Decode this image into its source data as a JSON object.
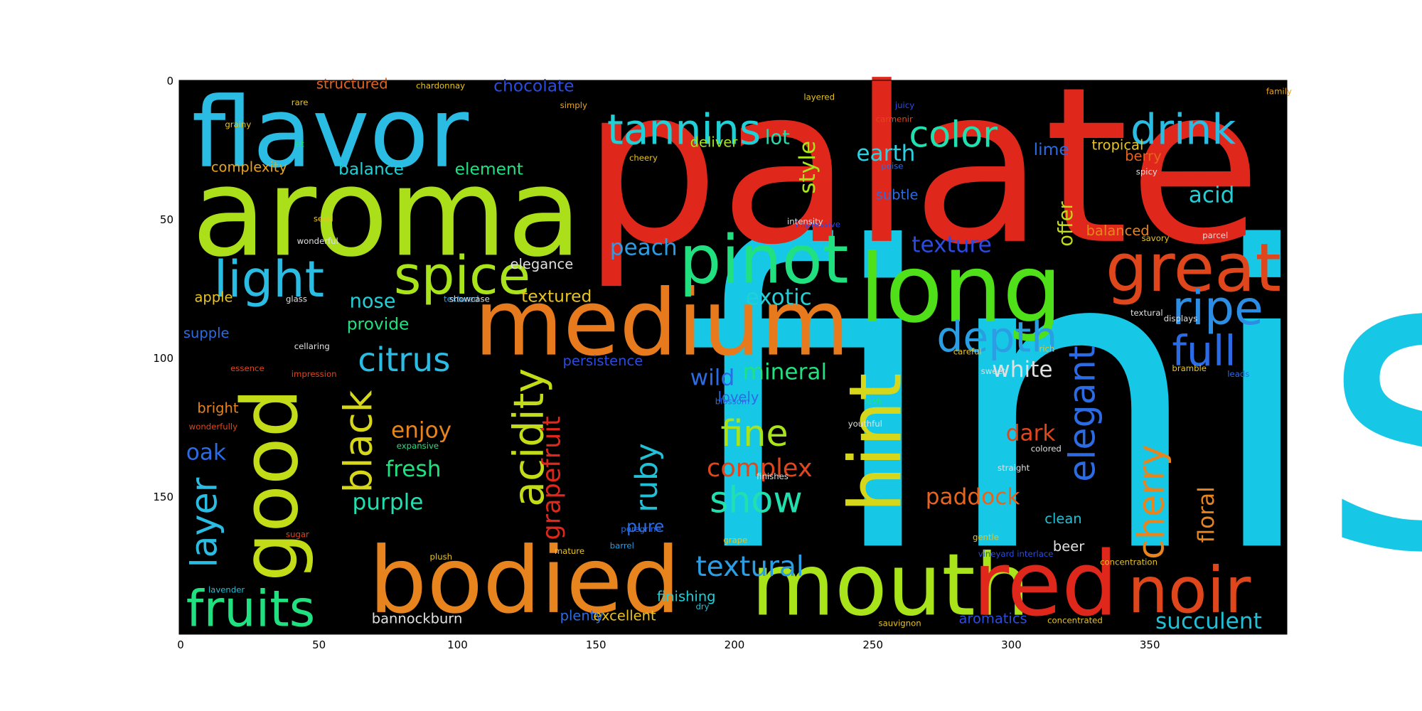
{
  "chart_data": {
    "type": "wordcloud_image",
    "title": "",
    "xlabel": "",
    "ylabel": "",
    "xlim": [
      0,
      400
    ],
    "ylim": [
      200,
      0
    ],
    "x_ticks": [
      "0",
      "50",
      "100",
      "150",
      "200",
      "250",
      "300",
      "350"
    ],
    "y_ticks": [
      "0",
      "50",
      "100",
      "150"
    ],
    "background_color": "#000000",
    "words": [
      {
        "text": "finish",
        "x": 180,
        "y": 168,
        "size": 150,
        "color": "#17c8e6"
      },
      {
        "text": "palate",
        "x": 145,
        "y": 58,
        "size": 78,
        "color": "#e0271b"
      },
      {
        "text": "aroma",
        "x": 4,
        "y": 63,
        "size": 44,
        "color": "#aadf1a"
      },
      {
        "text": "flavor",
        "x": 4,
        "y": 31,
        "size": 35,
        "color": "#2bbce3"
      },
      {
        "text": "long",
        "x": 245,
        "y": 87,
        "size": 34,
        "color": "#4fe01a"
      },
      {
        "text": "medium",
        "x": 106,
        "y": 99,
        "size": 33,
        "color": "#e87a1e"
      },
      {
        "text": "bodied",
        "x": 68,
        "y": 192,
        "size": 33,
        "color": "#e8841e"
      },
      {
        "text": "mouth",
        "x": 206,
        "y": 193,
        "size": 31,
        "color": "#a9e41a"
      },
      {
        "text": "red",
        "x": 286,
        "y": 193,
        "size": 32,
        "color": "#e0271b"
      },
      {
        "text": "good",
        "x": 42,
        "y": 181,
        "size": 28,
        "color": "#c3dc18",
        "rotate": -90
      },
      {
        "text": "hint",
        "x": 260,
        "y": 156,
        "size": 26,
        "color": "#d6d61a",
        "rotate": -90
      },
      {
        "text": "pinot",
        "x": 180,
        "y": 73,
        "size": 24,
        "color": "#20e080"
      },
      {
        "text": "great",
        "x": 334,
        "y": 76,
        "size": 24,
        "color": "#e0461b"
      },
      {
        "text": "noir",
        "x": 342,
        "y": 192,
        "size": 23,
        "color": "#e0461b"
      },
      {
        "text": "spice",
        "x": 77,
        "y": 77,
        "size": 19,
        "color": "#a9e41a"
      },
      {
        "text": "light",
        "x": 12,
        "y": 78,
        "size": 18,
        "color": "#2bbce3"
      },
      {
        "text": "fruits",
        "x": 2,
        "y": 197,
        "size": 18,
        "color": "#20e080"
      },
      {
        "text": "ripe",
        "x": 358,
        "y": 88,
        "size": 17,
        "color": "#2b8de3"
      },
      {
        "text": "drink",
        "x": 343,
        "y": 23,
        "size": 15,
        "color": "#2bbce3"
      },
      {
        "text": "tannins",
        "x": 154,
        "y": 23,
        "size": 15,
        "color": "#20d0d6"
      },
      {
        "text": "depth",
        "x": 273,
        "y": 98,
        "size": 15,
        "color": "#2b9ee3"
      },
      {
        "text": "full",
        "x": 358,
        "y": 103,
        "size": 15,
        "color": "#2b6be3"
      },
      {
        "text": "color",
        "x": 263,
        "y": 24,
        "size": 13,
        "color": "#20e0b0"
      },
      {
        "text": "citrus",
        "x": 64,
        "y": 105,
        "size": 12,
        "color": "#2bbce3"
      },
      {
        "text": "acidity",
        "x": 131,
        "y": 154,
        "size": 15,
        "color": "#c3dc18",
        "rotate": -90
      },
      {
        "text": "black",
        "x": 69,
        "y": 149,
        "size": 14,
        "color": "#d6d61a",
        "rotate": -90
      },
      {
        "text": "layer",
        "x": 13,
        "y": 176,
        "size": 13,
        "color": "#2bbce3",
        "rotate": -90
      },
      {
        "text": "cherry",
        "x": 355,
        "y": 173,
        "size": 13,
        "color": "#e8841e",
        "rotate": -90
      },
      {
        "text": "elegant",
        "x": 330,
        "y": 145,
        "size": 13,
        "color": "#2b6be3",
        "rotate": -90
      },
      {
        "text": "show",
        "x": 191,
        "y": 156,
        "size": 13,
        "color": "#20e0b0"
      },
      {
        "text": "fine",
        "x": 195,
        "y": 132,
        "size": 13,
        "color": "#a9e41a"
      },
      {
        "text": "ruby",
        "x": 172,
        "y": 156,
        "size": 11,
        "color": "#20c0d6",
        "rotate": -90
      },
      {
        "text": "grapefruit",
        "x": 137,
        "y": 166,
        "size": 9,
        "color": "#e0271b",
        "rotate": -90
      },
      {
        "text": "textural",
        "x": 186,
        "y": 179,
        "size": 10,
        "color": "#2b9ee3"
      },
      {
        "text": "succulent",
        "x": 352,
        "y": 198,
        "size": 8,
        "color": "#20c0d6"
      },
      {
        "text": "floral",
        "x": 373,
        "y": 167,
        "size": 8,
        "color": "#e8841e",
        "rotate": -90
      },
      {
        "text": "complex",
        "x": 190,
        "y": 143,
        "size": 9,
        "color": "#e0461b"
      },
      {
        "text": "paddock",
        "x": 269,
        "y": 153,
        "size": 8,
        "color": "#e8641e"
      },
      {
        "text": "dark",
        "x": 298,
        "y": 130,
        "size": 8,
        "color": "#e0461b"
      },
      {
        "text": "white",
        "x": 293,
        "y": 107,
        "size": 8,
        "color": "#e0e0e0"
      },
      {
        "text": "mineral",
        "x": 203,
        "y": 108,
        "size": 8,
        "color": "#20e080"
      },
      {
        "text": "wild",
        "x": 184,
        "y": 110,
        "size": 8,
        "color": "#2b6be3"
      },
      {
        "text": "exotic",
        "x": 204,
        "y": 81,
        "size": 8,
        "color": "#20d0d6"
      },
      {
        "text": "texture",
        "x": 264,
        "y": 62,
        "size": 8,
        "color": "#2b4be3"
      },
      {
        "text": "peach",
        "x": 155,
        "y": 63,
        "size": 8,
        "color": "#2b9ee3"
      },
      {
        "text": "earth",
        "x": 244,
        "y": 29,
        "size": 8,
        "color": "#2bd0e3"
      },
      {
        "text": "acid",
        "x": 364,
        "y": 44,
        "size": 8,
        "color": "#20d0d6"
      },
      {
        "text": "style",
        "x": 229,
        "y": 41,
        "size": 8,
        "color": "#a9e41a",
        "rotate": -90
      },
      {
        "text": "offer",
        "x": 322,
        "y": 60,
        "size": 7,
        "color": "#c3dc18",
        "rotate": -90
      },
      {
        "text": "enjoy",
        "x": 76,
        "y": 129,
        "size": 8,
        "color": "#e8841e"
      },
      {
        "text": "fresh",
        "x": 74,
        "y": 143,
        "size": 8,
        "color": "#20e080"
      },
      {
        "text": "purple",
        "x": 62,
        "y": 155,
        "size": 8,
        "color": "#20e0b0"
      },
      {
        "text": "oak",
        "x": 2,
        "y": 137,
        "size": 8,
        "color": "#2b6be3"
      },
      {
        "text": "nose",
        "x": 61,
        "y": 82,
        "size": 7,
        "color": "#20d0d6"
      },
      {
        "text": "textured",
        "x": 123,
        "y": 80,
        "size": 6,
        "color": "#e8c41e"
      },
      {
        "text": "provide",
        "x": 60,
        "y": 90,
        "size": 6,
        "color": "#20e080"
      },
      {
        "text": "apple",
        "x": 5,
        "y": 80,
        "size": 5,
        "color": "#e8c41e"
      },
      {
        "text": "balance",
        "x": 57,
        "y": 34,
        "size": 6,
        "color": "#20d0d6"
      },
      {
        "text": "element",
        "x": 99,
        "y": 34,
        "size": 6,
        "color": "#20e080"
      },
      {
        "text": "complexity",
        "x": 11,
        "y": 33,
        "size": 5,
        "color": "#e8a41e"
      },
      {
        "text": "chocolate",
        "x": 113,
        "y": 4,
        "size": 6,
        "color": "#2b4be3"
      },
      {
        "text": "structured",
        "x": 49,
        "y": 3,
        "size": 5,
        "color": "#e8641e"
      },
      {
        "text": "lot",
        "x": 211,
        "y": 23,
        "size": 7,
        "color": "#20e0b0"
      },
      {
        "text": "deliver",
        "x": 184,
        "y": 24,
        "size": 5,
        "color": "#a9e41a"
      },
      {
        "text": "lime",
        "x": 308,
        "y": 27,
        "size": 6,
        "color": "#2b6be3"
      },
      {
        "text": "tropical",
        "x": 329,
        "y": 25,
        "size": 5,
        "color": "#e8c41e"
      },
      {
        "text": "berry",
        "x": 341,
        "y": 29,
        "size": 5,
        "color": "#e8641e"
      },
      {
        "text": "subtle",
        "x": 251,
        "y": 43,
        "size": 5,
        "color": "#2b6be3"
      },
      {
        "text": "balanced",
        "x": 327,
        "y": 56,
        "size": 5,
        "color": "#e8841e"
      },
      {
        "text": "elegance",
        "x": 119,
        "y": 68,
        "size": 5,
        "color": "#e0e0e0"
      },
      {
        "text": "bright",
        "x": 6,
        "y": 120,
        "size": 5,
        "color": "#e8841e"
      },
      {
        "text": "supple",
        "x": 1,
        "y": 93,
        "size": 5,
        "color": "#2b6be3"
      },
      {
        "text": "lovely",
        "x": 194,
        "y": 116,
        "size": 5,
        "color": "#2b6be3"
      },
      {
        "text": "persistence",
        "x": 138,
        "y": 103,
        "size": 5,
        "color": "#2b4be3"
      },
      {
        "text": "clean",
        "x": 312,
        "y": 160,
        "size": 5,
        "color": "#20c0d6"
      },
      {
        "text": "beer",
        "x": 315,
        "y": 170,
        "size": 5,
        "color": "#e0e0e0"
      },
      {
        "text": "pure",
        "x": 161,
        "y": 163,
        "size": 6,
        "color": "#2b6be3"
      },
      {
        "text": "finishing",
        "x": 172,
        "y": 188,
        "size": 5,
        "color": "#20d0d6"
      },
      {
        "text": "excellent",
        "x": 149,
        "y": 195,
        "size": 5,
        "color": "#e8c41e"
      },
      {
        "text": "plenty",
        "x": 137,
        "y": 195,
        "size": 5,
        "color": "#2b6be3"
      },
      {
        "text": "bannockburn",
        "x": 69,
        "y": 196,
        "size": 5,
        "color": "#e0e0e0"
      },
      {
        "text": "aromatics",
        "x": 281,
        "y": 196,
        "size": 5,
        "color": "#2b4be3"
      },
      {
        "text": "chardonnay",
        "x": 85,
        "y": 3,
        "size": 3,
        "color": "#e8c41e"
      },
      {
        "text": "simply",
        "x": 137,
        "y": 10,
        "size": 3,
        "color": "#e8a41e"
      },
      {
        "text": "rare",
        "x": 40,
        "y": 9,
        "size": 3,
        "color": "#e8c41e"
      },
      {
        "text": "grainy",
        "x": 16,
        "y": 17,
        "size": 3,
        "color": "#e8c41e"
      },
      {
        "text": "sit",
        "x": 41,
        "y": 24,
        "size": 3,
        "color": "#20e080"
      },
      {
        "text": "juicy",
        "x": 258,
        "y": 10,
        "size": 3,
        "color": "#2b4be3"
      },
      {
        "text": "layered",
        "x": 225,
        "y": 7,
        "size": 3,
        "color": "#e8c41e"
      },
      {
        "text": "carmenir",
        "x": 251,
        "y": 15,
        "size": 3,
        "color": "#e0461b"
      },
      {
        "text": "family",
        "x": 392,
        "y": 5,
        "size": 3,
        "color": "#e8a41e"
      },
      {
        "text": "seed",
        "x": 48,
        "y": 51,
        "size": 3,
        "color": "#e8c41e"
      },
      {
        "text": "wonderful",
        "x": 42,
        "y": 59,
        "size": 3,
        "color": "#e0e0e0"
      },
      {
        "text": "textured",
        "x": 95,
        "y": 80,
        "size": 3,
        "color": "#2b9ee3"
      },
      {
        "text": "cellaring",
        "x": 41,
        "y": 97,
        "size": 3,
        "color": "#e0e0e0"
      },
      {
        "text": "impression",
        "x": 40,
        "y": 107,
        "size": 3,
        "color": "#e0461b"
      },
      {
        "text": "essence",
        "x": 18,
        "y": 105,
        "size": 3,
        "color": "#e0461b"
      },
      {
        "text": "wonderfully",
        "x": 3,
        "y": 126,
        "size": 3,
        "color": "#e0461b"
      },
      {
        "text": "expansive",
        "x": 78,
        "y": 133,
        "size": 3,
        "color": "#20e080"
      },
      {
        "text": "plush",
        "x": 90,
        "y": 173,
        "size": 3,
        "color": "#e8c41e"
      },
      {
        "text": "lavender",
        "x": 10,
        "y": 185,
        "size": 3,
        "color": "#20c0d6"
      },
      {
        "text": "sugar",
        "x": 38,
        "y": 165,
        "size": 3,
        "color": "#e0461b"
      },
      {
        "text": "grape",
        "x": 196,
        "y": 167,
        "size": 3,
        "color": "#e8c41e"
      },
      {
        "text": "gentle",
        "x": 286,
        "y": 166,
        "size": 3,
        "color": "#e8c41e"
      },
      {
        "text": "vineyard interlace",
        "x": 288,
        "y": 172,
        "size": 3,
        "color": "#2b4be3"
      },
      {
        "text": "concentration",
        "x": 332,
        "y": 175,
        "size": 3,
        "color": "#e8c41e"
      },
      {
        "text": "sauvignon",
        "x": 252,
        "y": 197,
        "size": 3,
        "color": "#e8c41e"
      },
      {
        "text": "concentrated",
        "x": 313,
        "y": 196,
        "size": 3,
        "color": "#e8c41e"
      },
      {
        "text": "bramble",
        "x": 358,
        "y": 105,
        "size": 3,
        "color": "#e8c41e"
      },
      {
        "text": "leads",
        "x": 378,
        "y": 107,
        "size": 3,
        "color": "#2b6be3"
      },
      {
        "text": "displays",
        "x": 355,
        "y": 87,
        "size": 3,
        "color": "#e0e0e0"
      },
      {
        "text": "savory",
        "x": 347,
        "y": 58,
        "size": 3,
        "color": "#e8c41e"
      },
      {
        "text": "parcel",
        "x": 369,
        "y": 57,
        "size": 3,
        "color": "#e0e0e0"
      },
      {
        "text": "mature",
        "x": 135,
        "y": 171,
        "size": 3,
        "color": "#e8c41e"
      },
      {
        "text": "dry",
        "x": 186,
        "y": 191,
        "size": 3,
        "color": "#20c0d6"
      },
      {
        "text": "barrel",
        "x": 155,
        "y": 169,
        "size": 3,
        "color": "#2b9ee3"
      },
      {
        "text": "peregrine",
        "x": 159,
        "y": 163,
        "size": 3,
        "color": "#2b6be3"
      },
      {
        "text": "blossom",
        "x": 193,
        "y": 117,
        "size": 3,
        "color": "#2b6be3"
      },
      {
        "text": "finishes",
        "x": 208,
        "y": 144,
        "size": 3,
        "color": "#e0e0e0"
      },
      {
        "text": "youthful",
        "x": 241,
        "y": 125,
        "size": 3,
        "color": "#e0e0e0"
      },
      {
        "text": "colored",
        "x": 307,
        "y": 134,
        "size": 3,
        "color": "#e0e0e0"
      },
      {
        "text": "careful",
        "x": 279,
        "y": 99,
        "size": 3,
        "color": "#e8c41e"
      },
      {
        "text": "rich",
        "x": 310,
        "y": 98,
        "size": 3,
        "color": "#e8c41e"
      },
      {
        "text": "sweet",
        "x": 289,
        "y": 106,
        "size": 3,
        "color": "#e0e0e0"
      },
      {
        "text": "lush",
        "x": 247,
        "y": 117,
        "size": 3,
        "color": "#20e080"
      },
      {
        "text": "straight",
        "x": 295,
        "y": 141,
        "size": 3,
        "color": "#e0e0e0"
      },
      {
        "text": "poise",
        "x": 253,
        "y": 32,
        "size": 3,
        "color": "#2b6be3"
      },
      {
        "text": "impressive",
        "x": 222,
        "y": 53,
        "size": 3,
        "color": "#2b4be3"
      },
      {
        "text": "intensity",
        "x": 219,
        "y": 52,
        "size": 3,
        "color": "#e0e0e0"
      },
      {
        "text": "showcase",
        "x": 97,
        "y": 80,
        "size": 3,
        "color": "#e0e0e0"
      },
      {
        "text": "glass",
        "x": 38,
        "y": 80,
        "size": 3,
        "color": "#e0e0e0"
      },
      {
        "text": "cheery",
        "x": 162,
        "y": 29,
        "size": 3,
        "color": "#e8c41e"
      },
      {
        "text": "spicy",
        "x": 345,
        "y": 34,
        "size": 3,
        "color": "#e0e0e0"
      },
      {
        "text": "textural",
        "x": 343,
        "y": 85,
        "size": 3,
        "color": "#e0e0e0"
      }
    ]
  }
}
